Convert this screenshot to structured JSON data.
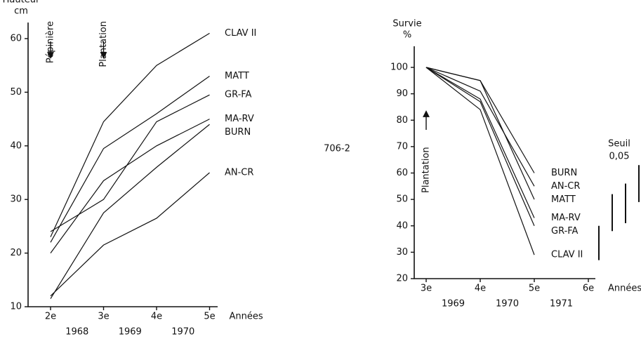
{
  "chart_data": [
    {
      "type": "line",
      "y_label": "Hauteur",
      "y_unit": "cm",
      "x_label": "Années",
      "categories": [
        "2e",
        "3e",
        "4e",
        "5e"
      ],
      "years": [
        "1968",
        "1969",
        "1970"
      ],
      "annotations": [
        "Pépinière",
        "Plantation"
      ],
      "ylim": [
        10,
        63
      ],
      "yticks": [
        10,
        20,
        30,
        40,
        50,
        60
      ],
      "color": "#111111",
      "series": [
        {
          "name": "CLAV II",
          "values": [
            23,
            44.5,
            55,
            61
          ]
        },
        {
          "name": "MATT",
          "values": [
            22,
            39.5,
            46,
            53
          ]
        },
        {
          "name": "GR-FA",
          "values": [
            24,
            30,
            44.5,
            49.5
          ]
        },
        {
          "name": "MA-RV",
          "values": [
            20,
            33.5,
            40,
            45
          ]
        },
        {
          "name": "BURN",
          "values": [
            11.5,
            27.5,
            36,
            44
          ]
        },
        {
          "name": "AN-CR",
          "values": [
            12,
            21.5,
            26.5,
            35
          ]
        }
      ]
    },
    {
      "type": "line",
      "y_label": "Survie",
      "y_unit": "%",
      "x_label": "Années",
      "categories": [
        "3e",
        "4e",
        "5e",
        "6e"
      ],
      "years": [
        "1969",
        "1970",
        "1971"
      ],
      "annotations": [
        "Plantation"
      ],
      "figure_id": "706-2",
      "threshold_label": "Seuil",
      "threshold_value": "0,05",
      "threshold_bars": [
        [
          27,
          40
        ],
        [
          38,
          52
        ],
        [
          41,
          56
        ],
        [
          49,
          63
        ]
      ],
      "ylim": [
        20,
        108
      ],
      "yticks": [
        20,
        30,
        40,
        50,
        60,
        70,
        80,
        90,
        100
      ],
      "color": "#111111",
      "series": [
        {
          "name": "BURN",
          "values": [
            100,
            95,
            60,
            null
          ]
        },
        {
          "name": "AN-CR",
          "values": [
            100,
            91,
            55,
            null
          ]
        },
        {
          "name": "MATT",
          "values": [
            100,
            95,
            50,
            null
          ]
        },
        {
          "name": "MA-RV",
          "values": [
            100,
            88,
            43,
            null
          ]
        },
        {
          "name": "GR-FA",
          "values": [
            100,
            87,
            40,
            null
          ]
        },
        {
          "name": "CLAV II",
          "values": [
            100,
            84,
            29,
            null
          ]
        }
      ]
    }
  ]
}
